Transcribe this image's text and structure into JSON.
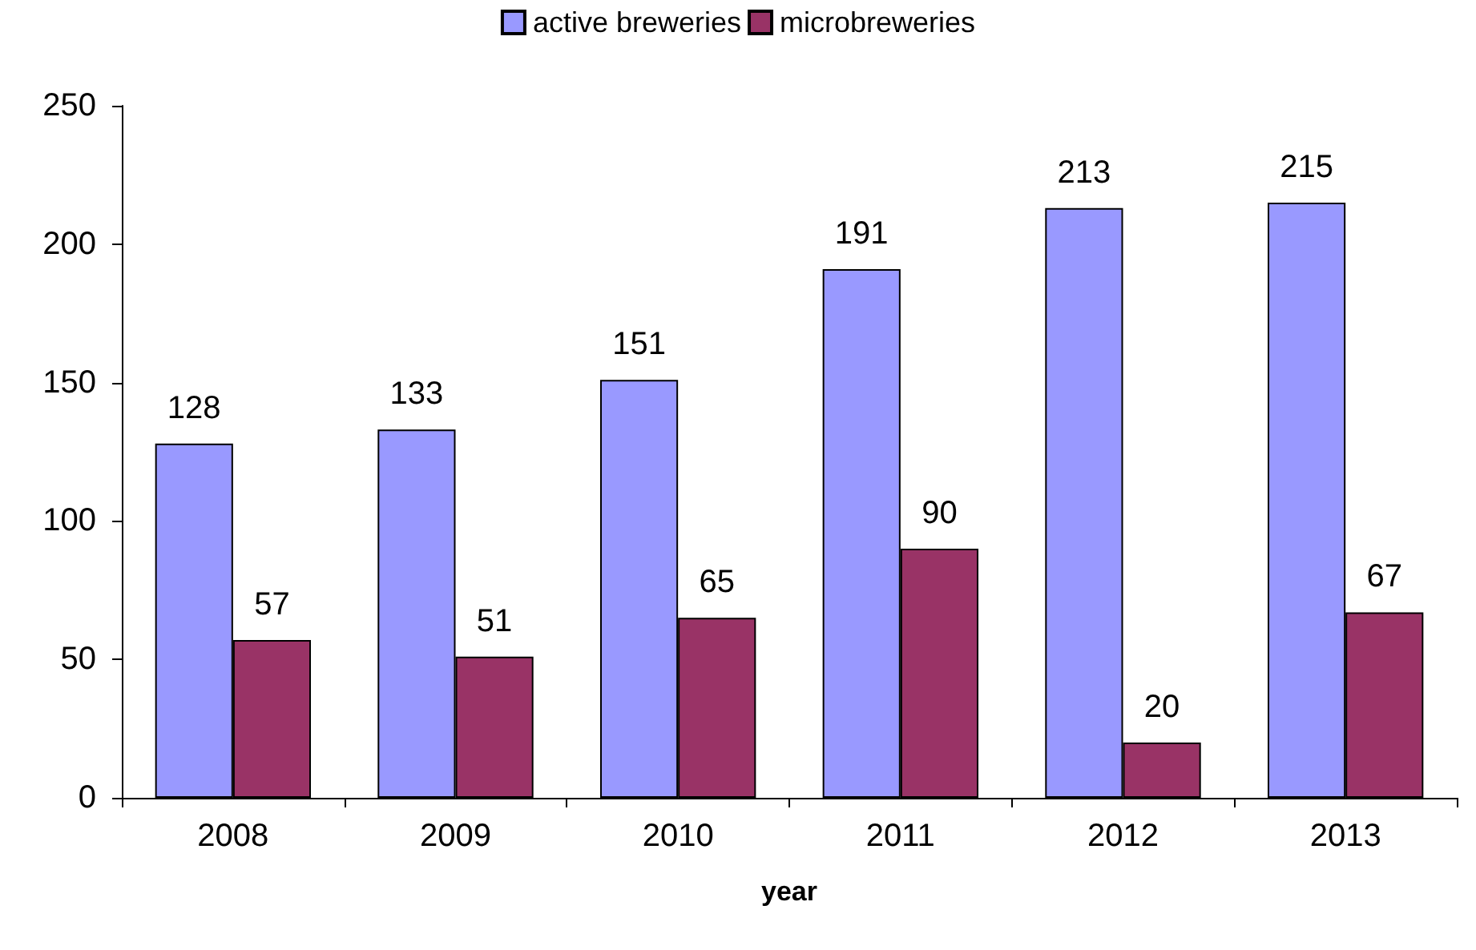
{
  "chart_data": {
    "type": "bar",
    "xlabel": "year",
    "categories": [
      "2008",
      "2009",
      "2010",
      "2011",
      "2012",
      "2013"
    ],
    "series": [
      {
        "name": "active breweries",
        "color": "#9999ff",
        "values": [
          128,
          133,
          151,
          191,
          213,
          215
        ]
      },
      {
        "name": "microbreweries",
        "color": "#993366",
        "values": [
          57,
          51,
          65,
          90,
          20,
          67
        ]
      }
    ],
    "ylim": [
      0,
      250
    ],
    "yticks": [
      0,
      50,
      100,
      150,
      200,
      250
    ],
    "grid": false,
    "legend": "top",
    "data_labels": true
  }
}
